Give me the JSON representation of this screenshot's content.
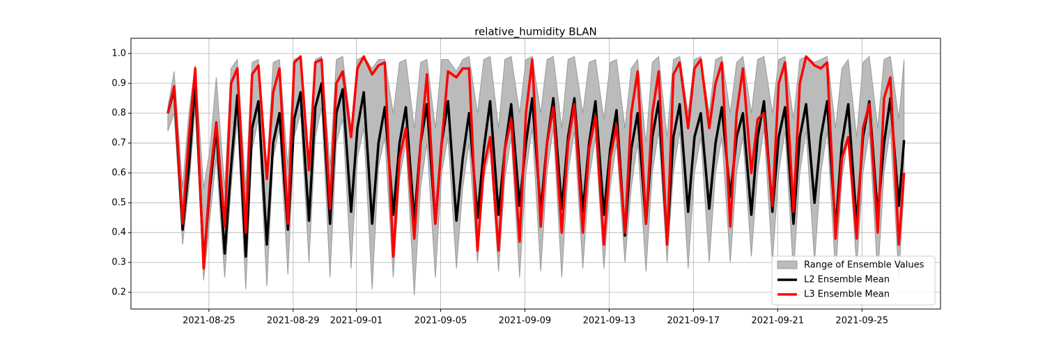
{
  "chart_data": {
    "type": "line",
    "title": "relative_humidity BLAN",
    "x": [
      18862.05,
      18862.35,
      18862.75,
      18863.05,
      18863.35,
      18863.75,
      18864.05,
      18864.35,
      18864.75,
      18865.05,
      18865.35,
      18865.75,
      18866.05,
      18866.35,
      18866.75,
      18867.05,
      18867.35,
      18867.75,
      18868.05,
      18868.35,
      18868.75,
      18869.05,
      18869.35,
      18869.75,
      18870.05,
      18870.35,
      18870.75,
      18871.05,
      18871.35,
      18871.75,
      18872.05,
      18872.35,
      18872.75,
      18873.05,
      18873.35,
      18873.75,
      18874.05,
      18874.35,
      18874.75,
      18875.05,
      18875.35,
      18875.75,
      18876.05,
      18876.35,
      18876.75,
      18877.05,
      18877.35,
      18877.75,
      18878.05,
      18878.35,
      18878.75,
      18879.05,
      18879.35,
      18879.75,
      18880.05,
      18880.35,
      18880.75,
      18881.05,
      18881.35,
      18881.75,
      18882.05,
      18882.35,
      18882.75,
      18883.05,
      18883.35,
      18883.75,
      18884.05,
      18884.35,
      18884.75,
      18885.05,
      18885.35,
      18885.75,
      18886.05,
      18886.35,
      18886.75,
      18887.05,
      18887.35,
      18887.75,
      18888.05,
      18888.35,
      18888.75,
      18889.05,
      18889.35,
      18889.75,
      18890.05,
      18890.35,
      18890.75,
      18891.05,
      18891.35,
      18891.75,
      18892.05,
      18892.35,
      18892.75,
      18893.05,
      18893.35,
      18893.75,
      18894.05,
      18894.35,
      18894.75,
      18895.05,
      18895.35,
      18895.75,
      18896.05,
      18896.35,
      18896.75,
      18897
    ],
    "band": {
      "name": "Range of Ensemble Values",
      "color": "#bbbbbb",
      "lower": [
        0.74,
        0.8,
        0.36,
        0.55,
        0.82,
        0.24,
        0.45,
        0.65,
        0.25,
        0.55,
        0.78,
        0.21,
        0.68,
        0.78,
        0.22,
        0.65,
        0.75,
        0.26,
        0.72,
        0.8,
        0.3,
        0.72,
        0.82,
        0.25,
        0.7,
        0.78,
        0.28,
        0.65,
        0.75,
        0.21,
        0.62,
        0.72,
        0.25,
        0.58,
        0.7,
        0.19,
        0.55,
        0.7,
        0.25,
        0.6,
        0.72,
        0.28,
        0.55,
        0.7,
        0.3,
        0.58,
        0.68,
        0.27,
        0.58,
        0.72,
        0.25,
        0.6,
        0.75,
        0.27,
        0.6,
        0.75,
        0.25,
        0.6,
        0.74,
        0.28,
        0.58,
        0.72,
        0.28,
        0.55,
        0.7,
        0.3,
        0.55,
        0.7,
        0.27,
        0.6,
        0.74,
        0.3,
        0.6,
        0.74,
        0.28,
        0.6,
        0.72,
        0.3,
        0.6,
        0.72,
        0.3,
        0.6,
        0.72,
        0.32,
        0.6,
        0.75,
        0.3,
        0.6,
        0.74,
        0.26,
        0.6,
        0.74,
        0.3,
        0.6,
        0.74,
        0.26,
        0.58,
        0.72,
        0.28,
        0.6,
        0.74,
        0.25,
        0.6,
        0.75,
        0.25,
        0.55
      ],
      "upper": [
        0.82,
        0.94,
        0.55,
        0.8,
        0.96,
        0.55,
        0.68,
        0.92,
        0.55,
        0.95,
        0.98,
        0.55,
        0.97,
        0.98,
        0.6,
        0.97,
        0.98,
        0.62,
        0.98,
        0.99,
        0.65,
        0.98,
        0.99,
        0.62,
        0.98,
        0.99,
        0.75,
        0.98,
        0.99,
        0.95,
        0.98,
        0.98,
        0.8,
        0.97,
        0.98,
        0.75,
        0.97,
        0.98,
        0.75,
        0.98,
        0.98,
        0.94,
        0.98,
        0.99,
        0.8,
        0.98,
        0.99,
        0.75,
        0.98,
        0.99,
        0.8,
        0.98,
        0.99,
        0.8,
        0.98,
        0.99,
        0.75,
        0.98,
        0.99,
        0.8,
        0.97,
        0.98,
        0.78,
        0.97,
        0.98,
        0.75,
        0.95,
        0.98,
        0.7,
        0.97,
        0.99,
        0.72,
        0.98,
        0.99,
        0.8,
        0.98,
        0.99,
        0.8,
        0.98,
        0.99,
        0.8,
        0.97,
        0.99,
        0.8,
        0.98,
        0.99,
        0.8,
        0.98,
        0.99,
        0.78,
        0.98,
        0.99,
        0.97,
        0.98,
        0.99,
        0.75,
        0.95,
        0.98,
        0.72,
        0.97,
        0.99,
        0.75,
        0.98,
        0.99,
        0.78,
        0.98
      ]
    },
    "series": [
      {
        "name": "L2 Ensemble Mean",
        "color": "#000000",
        "values": [
          0.8,
          0.88,
          0.41,
          0.62,
          0.9,
          0.3,
          0.55,
          0.75,
          0.33,
          0.62,
          0.86,
          0.32,
          0.75,
          0.84,
          0.36,
          0.7,
          0.8,
          0.41,
          0.78,
          0.87,
          0.44,
          0.82,
          0.9,
          0.43,
          0.8,
          0.88,
          0.47,
          0.75,
          0.87,
          0.43,
          0.7,
          0.82,
          0.46,
          0.7,
          0.82,
          0.44,
          0.7,
          0.83,
          0.43,
          0.7,
          0.84,
          0.44,
          0.65,
          0.8,
          0.45,
          0.68,
          0.84,
          0.46,
          0.68,
          0.83,
          0.49,
          0.7,
          0.85,
          0.47,
          0.7,
          0.85,
          0.48,
          0.72,
          0.85,
          0.47,
          0.7,
          0.84,
          0.46,
          0.68,
          0.81,
          0.39,
          0.68,
          0.8,
          0.43,
          0.72,
          0.84,
          0.37,
          0.72,
          0.83,
          0.47,
          0.72,
          0.8,
          0.48,
          0.7,
          0.82,
          0.52,
          0.72,
          0.8,
          0.46,
          0.72,
          0.84,
          0.47,
          0.72,
          0.82,
          0.43,
          0.72,
          0.83,
          0.5,
          0.72,
          0.84,
          0.41,
          0.7,
          0.83,
          0.43,
          0.72,
          0.84,
          0.46,
          0.7,
          0.85,
          0.49,
          0.71
        ]
      },
      {
        "name": "L3 Ensemble Mean",
        "color": "#ff0000",
        "values": [
          0.8,
          0.89,
          0.43,
          0.72,
          0.95,
          0.28,
          0.58,
          0.77,
          0.42,
          0.9,
          0.95,
          0.4,
          0.93,
          0.96,
          0.58,
          0.87,
          0.95,
          0.43,
          0.97,
          0.99,
          0.61,
          0.97,
          0.98,
          0.48,
          0.9,
          0.94,
          0.72,
          0.95,
          0.99,
          0.93,
          0.96,
          0.97,
          0.32,
          0.65,
          0.75,
          0.38,
          0.7,
          0.93,
          0.43,
          0.7,
          0.94,
          0.92,
          0.95,
          0.95,
          0.34,
          0.62,
          0.72,
          0.34,
          0.68,
          0.78,
          0.37,
          0.8,
          0.98,
          0.42,
          0.7,
          0.82,
          0.4,
          0.7,
          0.83,
          0.4,
          0.68,
          0.79,
          0.36,
          0.65,
          0.76,
          0.4,
          0.8,
          0.94,
          0.43,
          0.8,
          0.94,
          0.36,
          0.93,
          0.97,
          0.75,
          0.95,
          0.98,
          0.75,
          0.9,
          0.97,
          0.42,
          0.8,
          0.95,
          0.6,
          0.78,
          0.8,
          0.49,
          0.9,
          0.97,
          0.47,
          0.9,
          0.99,
          0.96,
          0.95,
          0.97,
          0.38,
          0.65,
          0.72,
          0.38,
          0.75,
          0.83,
          0.4,
          0.85,
          0.92,
          0.36,
          0.6
        ]
      }
    ],
    "xlim": [
      18860.3,
      18898.73
    ],
    "ylim": [
      0.144,
      1.051
    ],
    "xticks": [
      {
        "value": 18864,
        "label": "2021-08-25"
      },
      {
        "value": 18868,
        "label": "2021-08-29"
      },
      {
        "value": 18871,
        "label": "2021-09-01"
      },
      {
        "value": 18875,
        "label": "2021-09-05"
      },
      {
        "value": 18879,
        "label": "2021-09-09"
      },
      {
        "value": 18883,
        "label": "2021-09-13"
      },
      {
        "value": 18887,
        "label": "2021-09-17"
      },
      {
        "value": 18891,
        "label": "2021-09-21"
      },
      {
        "value": 18895,
        "label": "2021-09-25"
      }
    ],
    "yticks": [
      0.2,
      0.3,
      0.4,
      0.5,
      0.6,
      0.7,
      0.8,
      0.9,
      {
        "value": 1,
        "label": "1.0"
      }
    ],
    "grid": true,
    "legend": "lower right"
  }
}
